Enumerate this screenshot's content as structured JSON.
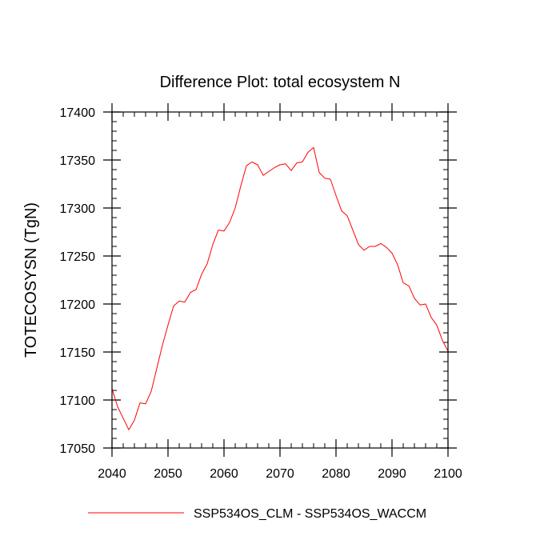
{
  "chart_data": {
    "type": "line",
    "title": "Difference Plot: total ecosystem N",
    "xlabel": "",
    "ylabel": "TOTECOSYSN  (TgN)",
    "xlim": [
      2040,
      2100
    ],
    "ylim": [
      17050,
      17400
    ],
    "x_ticks": [
      2040,
      2050,
      2060,
      2070,
      2080,
      2090,
      2100
    ],
    "y_ticks": [
      17050,
      17100,
      17150,
      17200,
      17250,
      17300,
      17350,
      17400
    ],
    "legend_position": "bottom",
    "series": [
      {
        "name": "SSP534OS_CLM - SSP534OS_WACCM",
        "color": "#ff0000",
        "x": [
          2040,
          2041,
          2042,
          2043,
          2044,
          2045,
          2046,
          2047,
          2048,
          2049,
          2050,
          2051,
          2052,
          2053,
          2054,
          2055,
          2056,
          2057,
          2058,
          2059,
          2060,
          2061,
          2062,
          2063,
          2064,
          2065,
          2066,
          2067,
          2068,
          2069,
          2070,
          2071,
          2072,
          2073,
          2074,
          2075,
          2076,
          2077,
          2078,
          2079,
          2080,
          2081,
          2082,
          2083,
          2084,
          2085,
          2086,
          2087,
          2088,
          2089,
          2090,
          2091,
          2092,
          2093,
          2094,
          2095,
          2096,
          2097,
          2098,
          2099,
          2100
        ],
        "y": [
          17112,
          17093,
          17081,
          17069,
          17079,
          17097,
          17096,
          17109,
          17133,
          17157,
          17178,
          17198,
          17203,
          17202,
          17212,
          17215,
          17231,
          17242,
          17262,
          17277,
          17276,
          17285,
          17300,
          17323,
          17344,
          17348,
          17345,
          17334,
          17338,
          17342,
          17345,
          17346,
          17339,
          17347,
          17348,
          17358,
          17363,
          17337,
          17331,
          17330,
          17313,
          17297,
          17292,
          17277,
          17262,
          17256,
          17260,
          17260,
          17263,
          17259,
          17253,
          17241,
          17222,
          17219,
          17206,
          17199,
          17200,
          17186,
          17178,
          17162,
          17151
        ]
      }
    ]
  }
}
